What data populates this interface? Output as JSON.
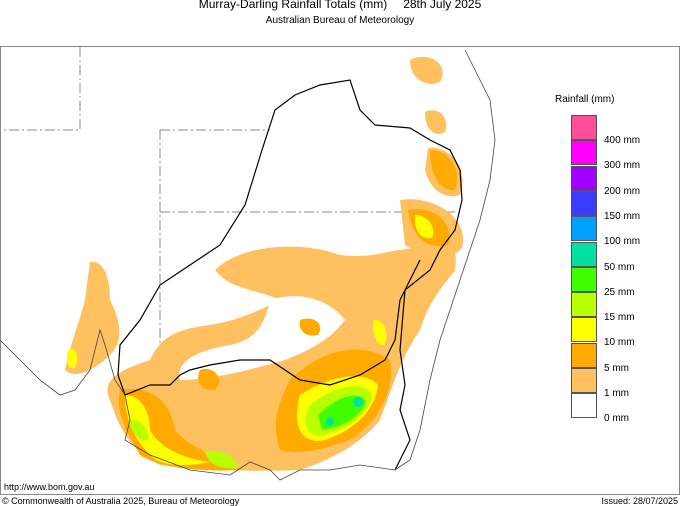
{
  "header": {
    "title": "Murray-Darling Rainfall Totals (mm)",
    "date": "28th July 2025",
    "subtitle": "Australian Bureau of Meteorology"
  },
  "legend": {
    "title": "Rainfall (mm)",
    "items": [
      {
        "label": "400 mm",
        "color": "#ff4f9a"
      },
      {
        "label": "300 mm",
        "color": "#ff00ff"
      },
      {
        "label": "200 mm",
        "color": "#a000ff"
      },
      {
        "label": "150 mm",
        "color": "#3c3cff"
      },
      {
        "label": "100 mm",
        "color": "#00a0ff"
      },
      {
        "label": "50 mm",
        "color": "#00e0a0"
      },
      {
        "label": "25 mm",
        "color": "#40ff00"
      },
      {
        "label": "15 mm",
        "color": "#b8ff00"
      },
      {
        "label": "10 mm",
        "color": "#ffff00"
      },
      {
        "label": "5 mm",
        "color": "#ffaa00"
      },
      {
        "label": "1 mm",
        "color": "#ffc060"
      },
      {
        "label": "0 mm",
        "color": "#ffffff"
      }
    ]
  },
  "footer": {
    "url": "http://www.bom.gov.au",
    "copyright": "© Commonwealth of Australia 2025, Bureau of Meteorology",
    "issued": "Issued: 28/07/2025"
  }
}
